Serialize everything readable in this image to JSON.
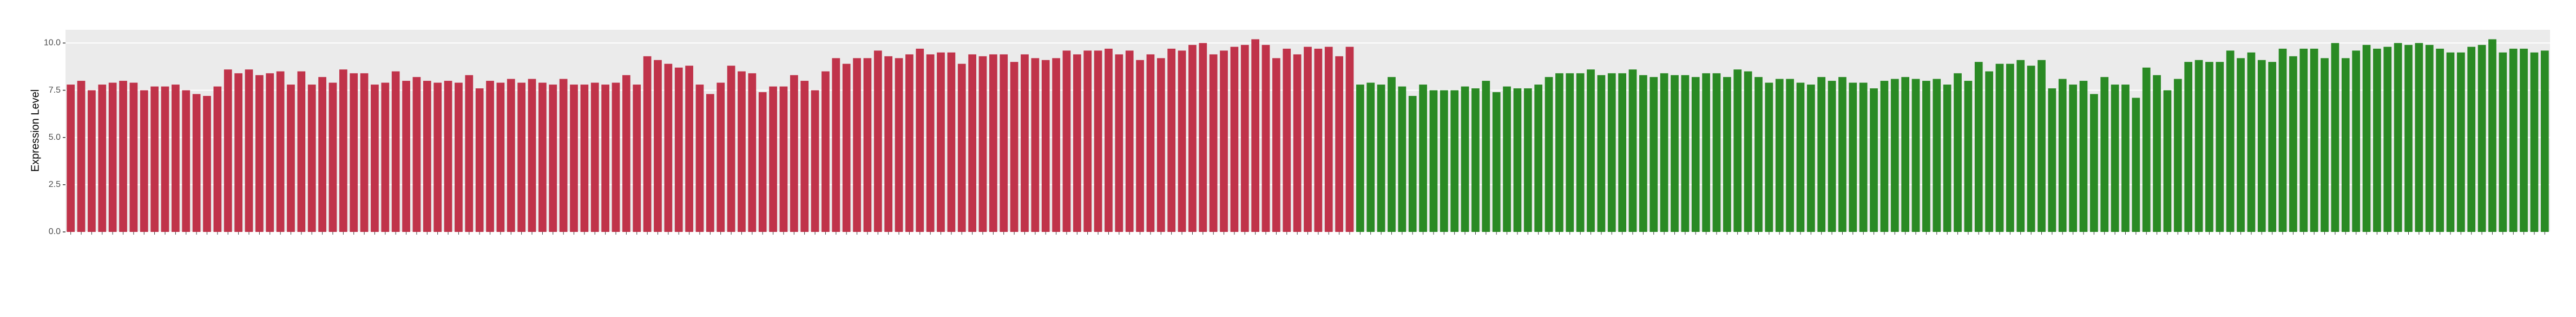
{
  "chart_data": {
    "type": "bar",
    "y_label": "Expression Level",
    "ylim": [
      0,
      10.7
    ],
    "yticks": [
      {
        "value": 0,
        "label": "0.0"
      },
      {
        "value": 2.5,
        "label": "2.5"
      },
      {
        "value": 5,
        "label": "5.0"
      },
      {
        "value": 7.5,
        "label": "7.5"
      },
      {
        "value": 10,
        "label": "10.0"
      }
    ],
    "grid": true,
    "series": [
      {
        "color": "#c0334a",
        "values": [
          7.8,
          8.0,
          7.5,
          7.8,
          7.9,
          8.0,
          7.9,
          7.5,
          7.7,
          7.7,
          7.8,
          7.5,
          7.3,
          7.2,
          7.7,
          8.6,
          8.4,
          8.6,
          8.3,
          8.4,
          8.5,
          7.8,
          8.5,
          7.8,
          8.2,
          7.9,
          8.6,
          8.4,
          8.4,
          7.8,
          7.9,
          8.5,
          8.0,
          8.2,
          8.0,
          7.9,
          8.0,
          7.9,
          8.3,
          7.6,
          8.0,
          7.9,
          8.1,
          7.9,
          8.1,
          7.9,
          7.8,
          8.1,
          7.8,
          7.8,
          7.9,
          7.8,
          7.9,
          8.3,
          7.8,
          9.3,
          9.1,
          8.9,
          8.7,
          8.8,
          7.8,
          7.3,
          7.9,
          8.8,
          8.5,
          8.4,
          7.4,
          7.7,
          7.7,
          8.3,
          8.0,
          7.5,
          8.5,
          9.2,
          8.9,
          9.2,
          9.2,
          9.6,
          9.3,
          9.2,
          9.4,
          9.7,
          9.4,
          9.5,
          9.5,
          8.9,
          9.4,
          9.3,
          9.4,
          9.4,
          9.0,
          9.4,
          9.2,
          9.1,
          9.2,
          9.6,
          9.4,
          9.6,
          9.6,
          9.7,
          9.4,
          9.6,
          9.1,
          9.4,
          9.2,
          9.7,
          9.6,
          9.9,
          10.0,
          9.4,
          9.6,
          9.8,
          9.9,
          10.2,
          9.9,
          9.2,
          9.7,
          9.4,
          9.8,
          9.7,
          9.8,
          9.3,
          9.8
        ]
      },
      {
        "color": "#2a8a24",
        "values": [
          7.8,
          7.9,
          7.8,
          8.2,
          7.7,
          7.2,
          7.8,
          7.5,
          7.5,
          7.5,
          7.7,
          7.6,
          8.0,
          7.4,
          7.7,
          7.6,
          7.6,
          7.8,
          8.2,
          8.4,
          8.4,
          8.4,
          8.6,
          8.3,
          8.4,
          8.4,
          8.6,
          8.3,
          8.2,
          8.4,
          8.3,
          8.3,
          8.2,
          8.4,
          8.4,
          8.2,
          8.6,
          8.5,
          8.2,
          7.9,
          8.1,
          8.1,
          7.9,
          7.8,
          8.2,
          8.0,
          8.2,
          7.9,
          7.9,
          7.6,
          8.0,
          8.1,
          8.2,
          8.1,
          8.0,
          8.1,
          7.8,
          8.4,
          8.0,
          9.0,
          8.5,
          8.9,
          8.9,
          9.1,
          8.8,
          9.1,
          7.6,
          8.1,
          7.8,
          8.0,
          7.3,
          8.2,
          7.8,
          7.8,
          7.1,
          8.7,
          8.3,
          7.5,
          8.1,
          9.0,
          9.1,
          9.0,
          9.0,
          9.6,
          9.2,
          9.5,
          9.1,
          9.0,
          9.7,
          9.3,
          9.7,
          9.7,
          9.2,
          10.0,
          9.2,
          9.6,
          9.9,
          9.7,
          9.8,
          10.0,
          9.9,
          10.0,
          9.9,
          9.7,
          9.5,
          9.5,
          9.8,
          9.9,
          10.2,
          9.5,
          9.7,
          9.7,
          9.5,
          9.6
        ]
      }
    ]
  }
}
